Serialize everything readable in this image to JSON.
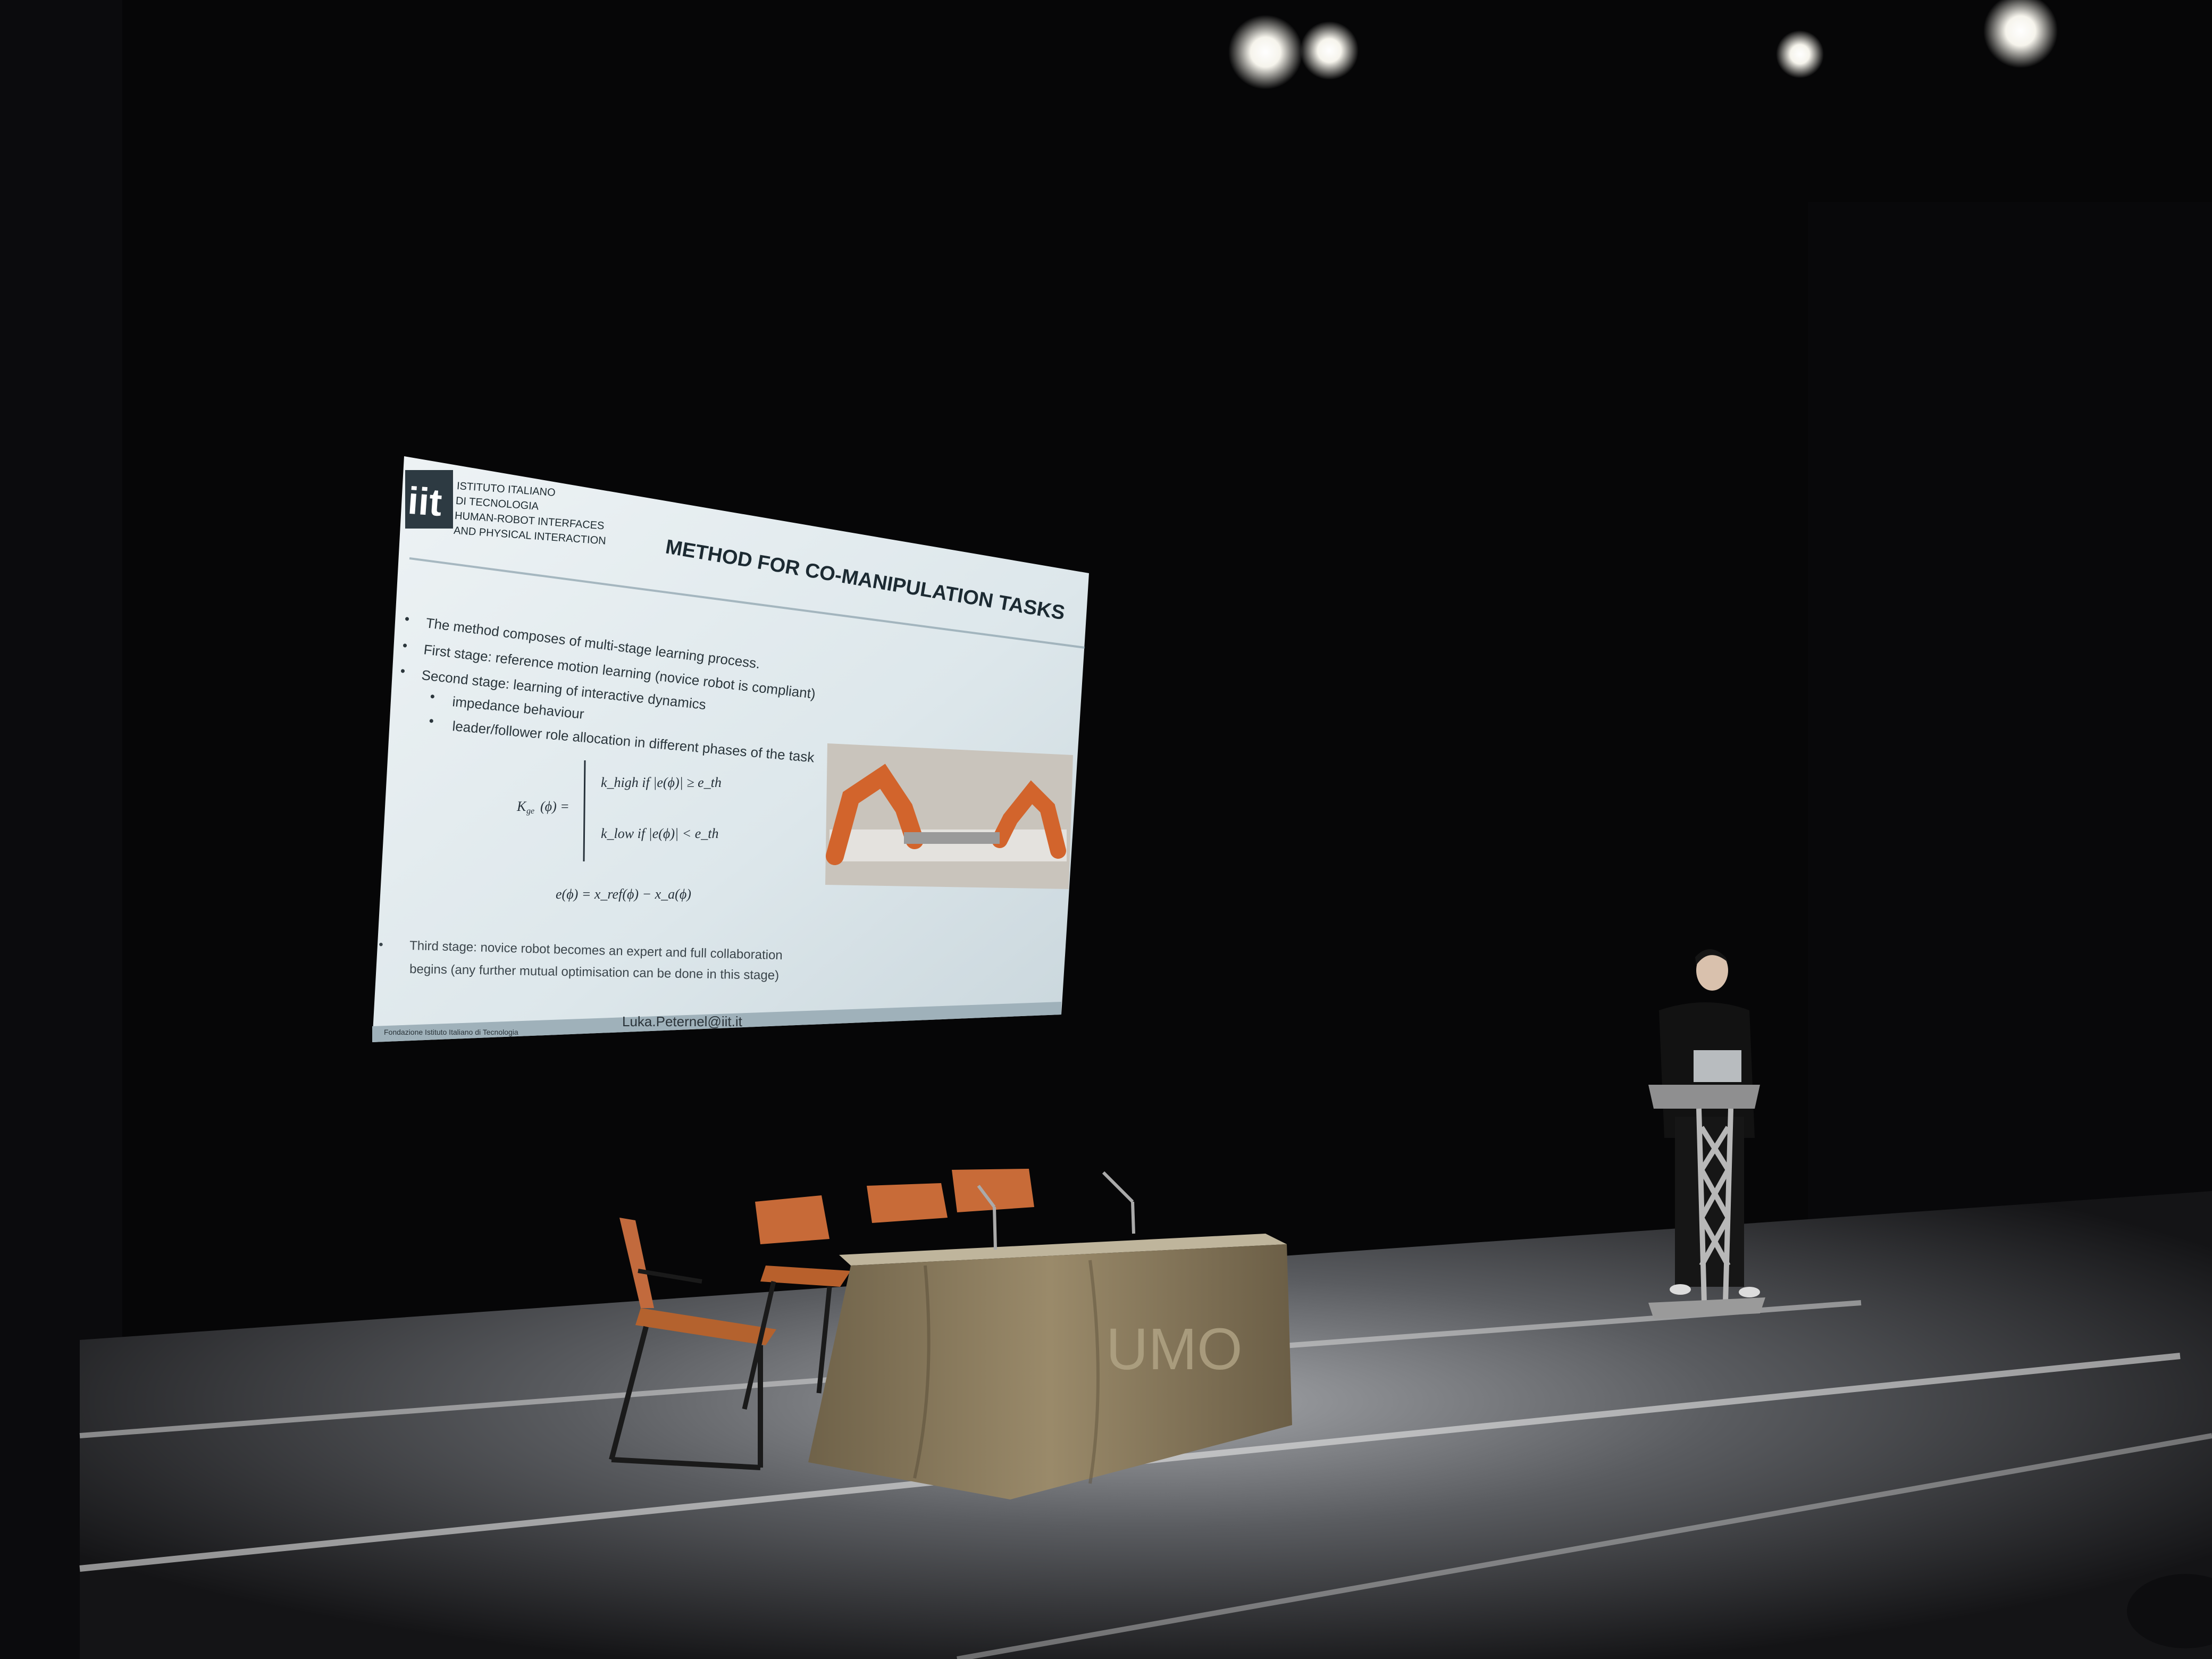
{
  "slide": {
    "logo_mark": "iit",
    "logo_lines": [
      "ISTITUTO ITALIANO",
      "DI TECNOLOGIA",
      "HUMAN-ROBOT INTERFACES",
      "AND PHYSICAL INTERACTION"
    ],
    "title": "METHOD FOR CO-MANIPULATION TASKS",
    "bullets": [
      "The method composes of multi-stage learning process.",
      "First stage: reference motion learning (novice robot is compliant)",
      "Second stage: learning of interactive dynamics"
    ],
    "sub_bullets": [
      "impedance behaviour",
      "leader/follower role allocation in different phases of the task"
    ],
    "equation_lhs": "K",
    "equation_cases": [
      "k_high  if  |e(ϕ)| ≥ e_th",
      "k_low  if  |e(ϕ)| < e_th"
    ],
    "equation_error": "e(ϕ) = x_ref(ϕ) − x_a(ϕ)",
    "third_stage": [
      "Third stage: novice robot becomes an expert and full collaboration",
      "begins (any further mutual optimisation can be done in this stage)"
    ],
    "footer_left": "Fondazione Istituto Italiano di Tecnologia",
    "footer_email": "Luka.Peternel@iit.it"
  },
  "tablecloth_logo": "UMO",
  "colors": {
    "background": "#050506",
    "screen": "#dfe8ec",
    "tablecloth": "#8a7a5e",
    "chair_seat": "#c46a3a",
    "stage_floor": "#2a2a2c",
    "spotlight": "#fdfdf8"
  }
}
